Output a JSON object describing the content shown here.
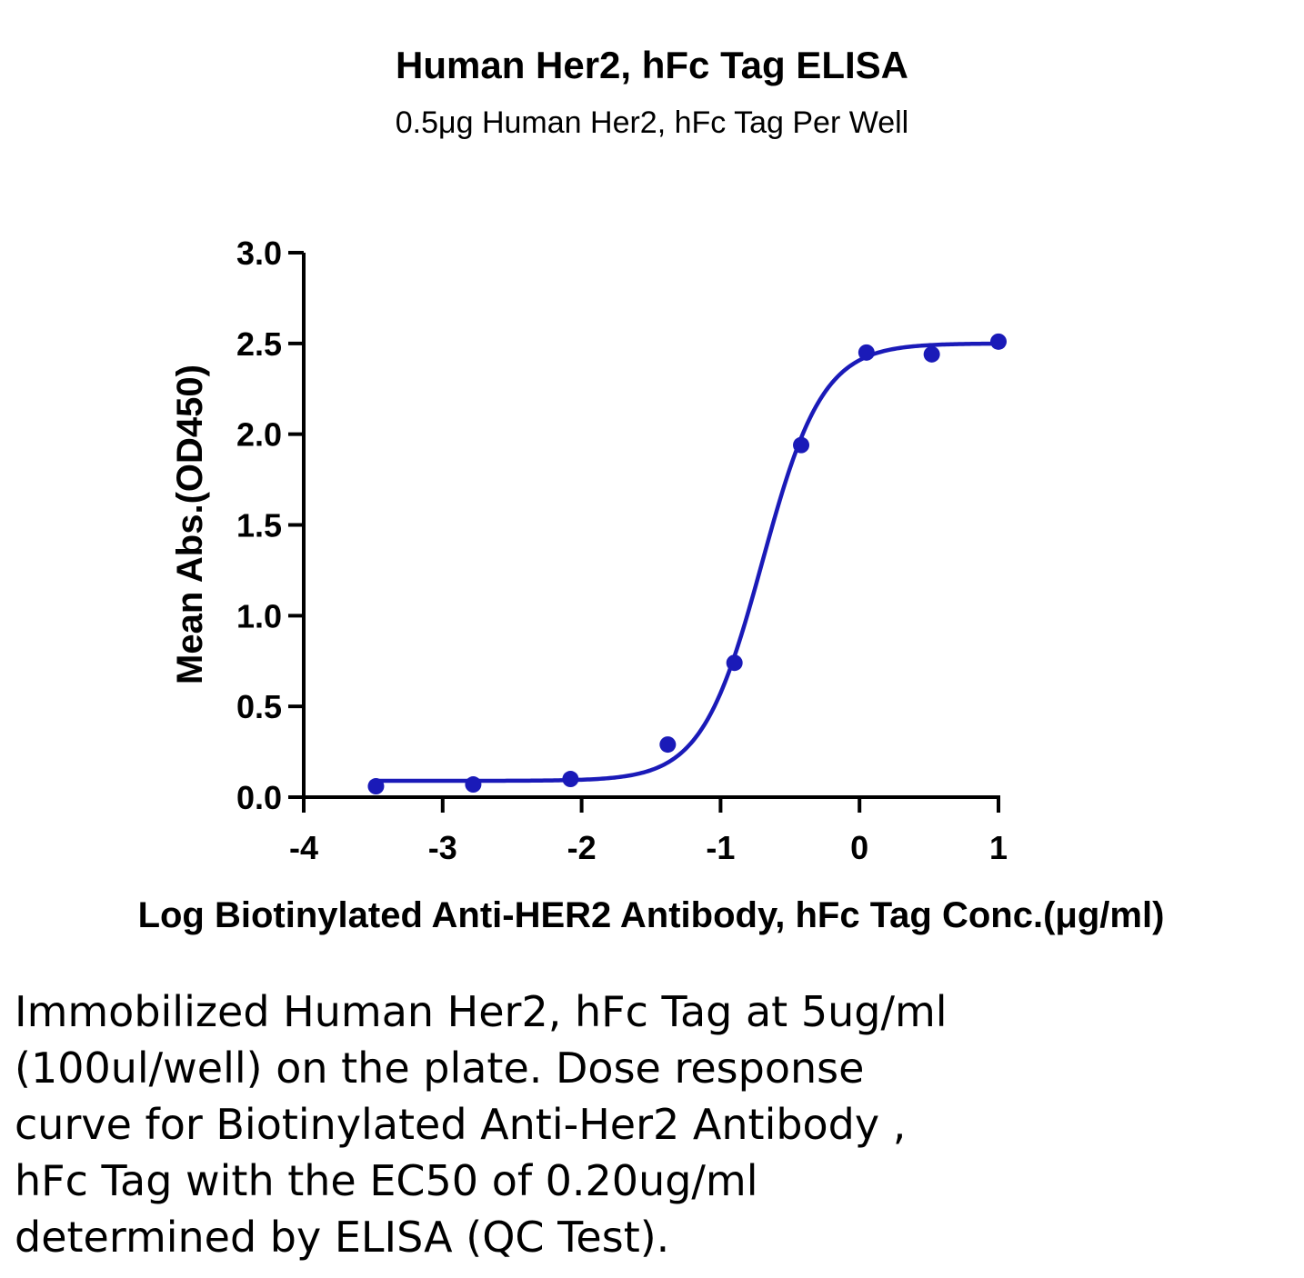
{
  "chart_data": {
    "type": "scatter",
    "title": "Human Her2, hFc Tag ELISA",
    "subtitle": "0.5μg Human Her2, hFc Tag Per Well",
    "xlabel": "Log Biotinylated Anti-HER2 Antibody, hFc Tag Conc.(μg/ml)",
    "ylabel": "Mean Abs.(OD450)",
    "xlim": [
      -4,
      1
    ],
    "ylim": [
      0,
      3.0
    ],
    "x_ticks": [
      "-4",
      "-3",
      "-2",
      "-1",
      "0",
      "1"
    ],
    "y_ticks": [
      "0.0",
      "0.5",
      "1.0",
      "1.5",
      "2.0",
      "2.5",
      "3.0"
    ],
    "grid": false,
    "color": "#1a1ab8",
    "series": [
      {
        "x": [
          -3.48,
          -2.78,
          -2.08,
          -1.38,
          -0.9,
          -0.42,
          0.05,
          0.52,
          1.0
        ],
        "y": [
          0.06,
          0.07,
          0.1,
          0.29,
          0.74,
          1.94,
          2.45,
          2.44,
          2.51
        ]
      }
    ],
    "fit": {
      "model": "four-parameter logistic",
      "bottom": 0.09,
      "top": 2.5,
      "logEC50": -0.7,
      "hill": 2.0
    }
  },
  "caption_lines": [
    "Immobilized Human Her2, hFc Tag at 5ug/ml",
    "(100ul/well) on the plate. Dose response",
    "curve for Biotinylated Anti-Her2 Antibody ,",
    "hFc Tag with the EC50 of 0.20ug/ml",
    "determined by ELISA (QC Test)."
  ]
}
